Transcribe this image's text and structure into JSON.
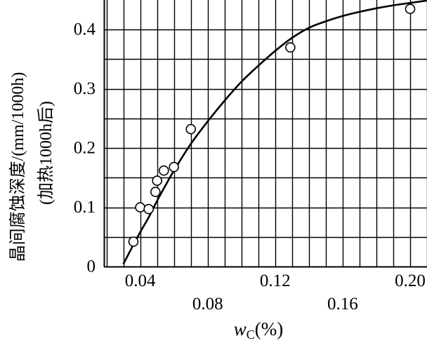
{
  "chart_data": {
    "type": "scatter",
    "title": "",
    "xlabel": {
      "main": "w",
      "sub": "C",
      "unit": "(%)"
    },
    "ylabel": [
      "晶间腐蚀深度/(mm/1000h)",
      "(加热1000h后)"
    ],
    "xlim": [
      0.0185,
      0.21
    ],
    "ylim": [
      0,
      0.45
    ],
    "grid": true,
    "x_ticks": [
      {
        "value": 0.04,
        "label": "0.04",
        "row": "upper"
      },
      {
        "value": 0.08,
        "label": "0.08",
        "row": "lower"
      },
      {
        "value": 0.12,
        "label": "0.12",
        "row": "upper"
      },
      {
        "value": 0.16,
        "label": "0.16",
        "row": "lower"
      },
      {
        "value": 0.2,
        "label": "0.20",
        "row": "upper"
      }
    ],
    "y_ticks": [
      {
        "value": 0,
        "label": "0"
      },
      {
        "value": 0.1,
        "label": "0.1"
      },
      {
        "value": 0.2,
        "label": "0.2"
      },
      {
        "value": 0.3,
        "label": "0.3"
      },
      {
        "value": 0.4,
        "label": "0.4"
      }
    ],
    "series": [
      {
        "kind": "points",
        "marker": "open-circle",
        "x": [
          0.036,
          0.04,
          0.045,
          0.049,
          0.05,
          0.054,
          0.06,
          0.07,
          0.129,
          0.2
        ],
        "y": [
          0.042,
          0.1,
          0.097,
          0.126,
          0.145,
          0.162,
          0.168,
          0.232,
          0.37,
          0.435
        ]
      },
      {
        "kind": "curve",
        "x": [
          0.03,
          0.036,
          0.04,
          0.045,
          0.05,
          0.055,
          0.06,
          0.07,
          0.08,
          0.09,
          0.1,
          0.11,
          0.12,
          0.13,
          0.14,
          0.15,
          0.16,
          0.17,
          0.18,
          0.19,
          0.2,
          0.21
        ],
        "y": [
          0.004,
          0.037,
          0.058,
          0.083,
          0.111,
          0.137,
          0.162,
          0.207,
          0.245,
          0.28,
          0.312,
          0.339,
          0.364,
          0.386,
          0.403,
          0.414,
          0.423,
          0.43,
          0.436,
          0.441,
          0.445,
          0.449
        ]
      }
    ]
  }
}
